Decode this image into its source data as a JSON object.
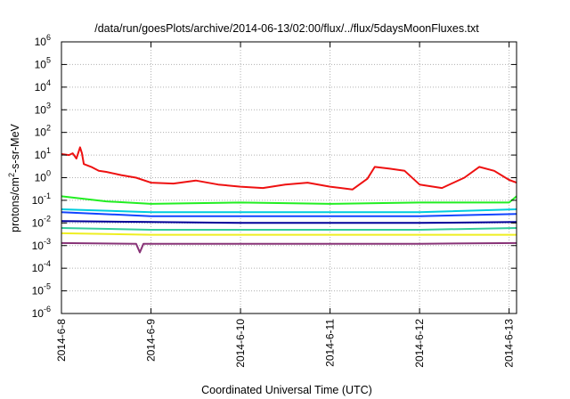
{
  "chart_data": {
    "type": "line",
    "title": "/data/run/goesPlots/archive/2014-06-13/02:00/flux/../flux/5daysMoonFluxes.txt",
    "xlabel": "Coordinated Universal Time (UTC)",
    "ylabel_parts": [
      "protons/cm",
      "2",
      "-s-sr-MeV"
    ],
    "y_scale": "log",
    "ylim": [
      1e-06,
      1000000.0
    ],
    "y_ticks": [
      {
        "base": "10",
        "exp": "-6"
      },
      {
        "base": "10",
        "exp": "-5"
      },
      {
        "base": "10",
        "exp": "-4"
      },
      {
        "base": "10",
        "exp": "-3"
      },
      {
        "base": "10",
        "exp": "-2"
      },
      {
        "base": "10",
        "exp": "-1"
      },
      {
        "base": "10",
        "exp": "0"
      },
      {
        "base": "10",
        "exp": "1"
      },
      {
        "base": "10",
        "exp": "2"
      },
      {
        "base": "10",
        "exp": "3"
      },
      {
        "base": "10",
        "exp": "4"
      },
      {
        "base": "10",
        "exp": "5"
      },
      {
        "base": "10",
        "exp": "6"
      }
    ],
    "x_range": [
      "2014-06-08T00:00",
      "2014-06-13T02:00"
    ],
    "x_ticks": [
      "2014-6-8",
      "2014-6-9",
      "2014-6-10",
      "2014-6-11",
      "2014-6-12",
      "2014-6-13"
    ],
    "grid": true,
    "series": [
      {
        "color": "#ee1111",
        "points": [
          [
            "2014-06-08T00:00",
            11
          ],
          [
            "2014-06-08T02:00",
            10
          ],
          [
            "2014-06-08T03:00",
            12
          ],
          [
            "2014-06-08T04:00",
            7
          ],
          [
            "2014-06-08T05:00",
            22
          ],
          [
            "2014-06-08T05:30",
            12
          ],
          [
            "2014-06-08T06:00",
            4
          ],
          [
            "2014-06-08T08:00",
            3
          ],
          [
            "2014-06-08T10:00",
            2
          ],
          [
            "2014-06-08T12:00",
            1.8
          ],
          [
            "2014-06-08T16:00",
            1.3
          ],
          [
            "2014-06-08T20:00",
            1.0
          ],
          [
            "2014-06-09T00:00",
            0.6
          ],
          [
            "2014-06-09T06:00",
            0.55
          ],
          [
            "2014-06-09T12:00",
            0.75
          ],
          [
            "2014-06-09T18:00",
            0.5
          ],
          [
            "2014-06-10T00:00",
            0.4
          ],
          [
            "2014-06-10T06:00",
            0.35
          ],
          [
            "2014-06-10T12:00",
            0.5
          ],
          [
            "2014-06-10T18:00",
            0.6
          ],
          [
            "2014-06-11T00:00",
            0.4
          ],
          [
            "2014-06-11T06:00",
            0.3
          ],
          [
            "2014-06-11T10:00",
            0.9
          ],
          [
            "2014-06-11T12:00",
            3
          ],
          [
            "2014-06-11T16:00",
            2.5
          ],
          [
            "2014-06-11T20:00",
            2.0
          ],
          [
            "2014-06-12T00:00",
            0.5
          ],
          [
            "2014-06-12T06:00",
            0.35
          ],
          [
            "2014-06-12T12:00",
            1.0
          ],
          [
            "2014-06-12T16:00",
            3.0
          ],
          [
            "2014-06-12T20:00",
            2.0
          ],
          [
            "2014-06-13T00:00",
            0.8
          ],
          [
            "2014-06-13T02:00",
            0.6
          ]
        ]
      },
      {
        "color": "#22ee22",
        "points": [
          [
            "2014-06-08T00:00",
            0.15
          ],
          [
            "2014-06-08T12:00",
            0.09
          ],
          [
            "2014-06-09T00:00",
            0.07
          ],
          [
            "2014-06-10T00:00",
            0.08
          ],
          [
            "2014-06-11T00:00",
            0.07
          ],
          [
            "2014-06-12T00:00",
            0.08
          ],
          [
            "2014-06-13T00:00",
            0.08
          ],
          [
            "2014-06-13T02:00",
            0.15
          ]
        ]
      },
      {
        "color": "#00ccdd",
        "points": [
          [
            "2014-06-08T00:00",
            0.04
          ],
          [
            "2014-06-09T00:00",
            0.03
          ],
          [
            "2014-06-10T00:00",
            0.03
          ],
          [
            "2014-06-11T00:00",
            0.03
          ],
          [
            "2014-06-12T00:00",
            0.03
          ],
          [
            "2014-06-13T02:00",
            0.04
          ]
        ]
      },
      {
        "color": "#1144ff",
        "points": [
          [
            "2014-06-08T00:00",
            0.03
          ],
          [
            "2014-06-09T00:00",
            0.02
          ],
          [
            "2014-06-10T00:00",
            0.02
          ],
          [
            "2014-06-11T00:00",
            0.02
          ],
          [
            "2014-06-12T00:00",
            0.02
          ],
          [
            "2014-06-13T02:00",
            0.025
          ]
        ]
      },
      {
        "color": "#000099",
        "points": [
          [
            "2014-06-08T00:00",
            0.012
          ],
          [
            "2014-06-09T00:00",
            0.011
          ],
          [
            "2014-06-10T00:00",
            0.01
          ],
          [
            "2014-06-11T00:00",
            0.01
          ],
          [
            "2014-06-12T00:00",
            0.01
          ],
          [
            "2014-06-13T02:00",
            0.011
          ]
        ]
      },
      {
        "color": "#33cc99",
        "points": [
          [
            "2014-06-08T00:00",
            0.006
          ],
          [
            "2014-06-09T00:00",
            0.005
          ],
          [
            "2014-06-10T00:00",
            0.005
          ],
          [
            "2014-06-11T00:00",
            0.005
          ],
          [
            "2014-06-12T00:00",
            0.005
          ],
          [
            "2014-06-13T02:00",
            0.006
          ]
        ]
      },
      {
        "color": "#eeee22",
        "points": [
          [
            "2014-06-08T00:00",
            0.0035
          ],
          [
            "2014-06-09T00:00",
            0.003
          ],
          [
            "2014-06-10T00:00",
            0.003
          ],
          [
            "2014-06-11T00:00",
            0.003
          ],
          [
            "2014-06-12T00:00",
            0.003
          ],
          [
            "2014-06-13T02:00",
            0.003
          ]
        ]
      },
      {
        "color": "#883377",
        "points": [
          [
            "2014-06-08T00:00",
            0.0013
          ],
          [
            "2014-06-08T20:00",
            0.0012
          ],
          [
            "2014-06-08T21:00",
            0.0005
          ],
          [
            "2014-06-08T22:00",
            0.0012
          ],
          [
            "2014-06-10T00:00",
            0.0012
          ],
          [
            "2014-06-11T00:00",
            0.0012
          ],
          [
            "2014-06-12T00:00",
            0.0012
          ],
          [
            "2014-06-13T02:00",
            0.0013
          ]
        ]
      }
    ]
  }
}
